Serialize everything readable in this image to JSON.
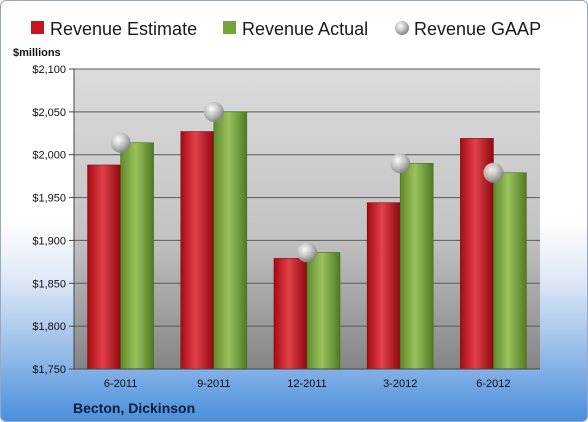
{
  "chart_data": {
    "type": "bar",
    "ylabel": "$millions",
    "company": "Becton, Dickinson",
    "categories": [
      "6-2011",
      "9-2011",
      "12-2011",
      "3-2012",
      "6-2012"
    ],
    "series": [
      {
        "name": "Revenue Estimate",
        "kind": "bar",
        "color": "#c8141e",
        "values": [
          1988,
          2027,
          1879,
          1944,
          2019
        ]
      },
      {
        "name": "Revenue Actual",
        "kind": "bar",
        "color": "#77a33a",
        "values": [
          2014,
          2050,
          1886,
          1990,
          1979
        ]
      },
      {
        "name": "Revenue GAAP",
        "kind": "marker",
        "color": "#b4b4b4",
        "values": [
          2014,
          2050,
          1886,
          1990,
          1979
        ]
      }
    ],
    "ylim": [
      1750,
      2100
    ],
    "yticks": [
      1750,
      1800,
      1850,
      1900,
      1950,
      2000,
      2050,
      2100
    ],
    "ytick_labels": [
      "$1,750",
      "$1,800",
      "$1,850",
      "$1,900",
      "$1,950",
      "$2,000",
      "$2,050",
      "$2,100"
    ],
    "grid": true,
    "legend": "top"
  }
}
